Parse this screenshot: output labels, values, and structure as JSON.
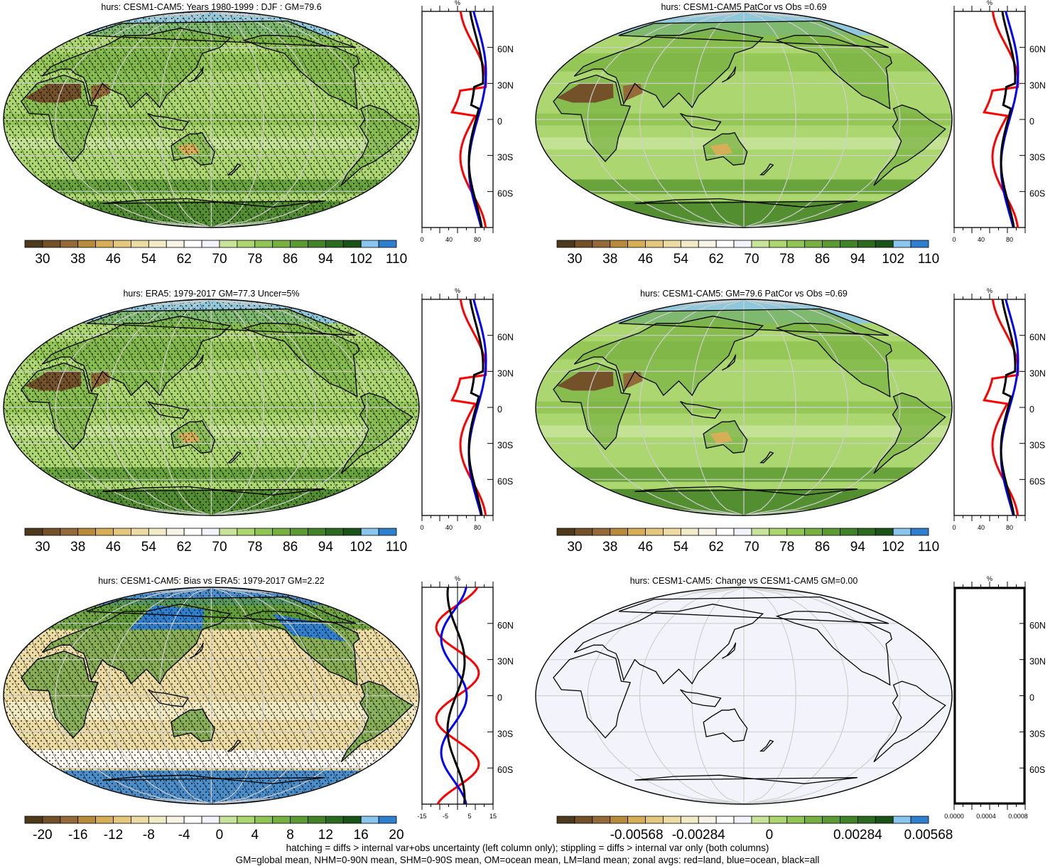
{
  "panels": [
    {
      "title": "hurs: CESM1-CAM5: Years 1980-1999 : DJF : GM=79.6",
      "colorbar_labels": [
        "30",
        "38",
        "46",
        "54",
        "62",
        "70",
        "78",
        "86",
        "94",
        "102",
        "110"
      ],
      "colorbar_colors": [
        "#4d3a1c",
        "#73522a",
        "#946a38",
        "#b88a3c",
        "#d6ae58",
        "#e3c77f",
        "#ecdca3",
        "#f2ebc8",
        "#f7f3e6",
        "#ffffff",
        "#f3f4fb",
        "#c7e49a",
        "#acd66f",
        "#90c453",
        "#77b041",
        "#5c9a33",
        "#438327",
        "#2c6a1f",
        "#1a5318",
        "#8ac5ee",
        "#2f7fcf"
      ],
      "zonal_axis": {
        "ticks": [
          "0",
          "40",
          "80"
        ],
        "unit": "%",
        "lat_labels": [
          "60N",
          "30N",
          "0",
          "30S",
          "60S"
        ]
      },
      "map_style": "model",
      "hatch": true,
      "stipple": true
    },
    {
      "title": "hurs: CESM1-CAM5 PatCor vs Obs =0.69",
      "colorbar_labels": [
        "30",
        "38",
        "46",
        "54",
        "62",
        "70",
        "78",
        "86",
        "94",
        "102",
        "110"
      ],
      "zonal_axis": {
        "ticks": [
          "0",
          "40",
          "80"
        ],
        "unit": "%",
        "lat_labels": [
          "60N",
          "30N",
          "0",
          "30S",
          "60S"
        ]
      },
      "map_style": "model",
      "hatch": false,
      "stipple": false
    },
    {
      "title": "hurs: ERA5: 1979-2017 GM=77.3 Uncer=5%",
      "colorbar_labels": [
        "30",
        "38",
        "46",
        "54",
        "62",
        "70",
        "78",
        "86",
        "94",
        "102",
        "110"
      ],
      "zonal_axis": {
        "ticks": [
          "0",
          "40",
          "80"
        ],
        "unit": "%",
        "lat_labels": [
          "60N",
          "30N",
          "0",
          "30S",
          "60S"
        ]
      },
      "map_style": "obs",
      "hatch": true,
      "stipple": true
    },
    {
      "title": "hurs: CESM1-CAM5: GM=79.6 PatCor vs Obs =0.69",
      "colorbar_labels": [
        "30",
        "38",
        "46",
        "54",
        "62",
        "70",
        "78",
        "86",
        "94",
        "102",
        "110"
      ],
      "zonal_axis": {
        "ticks": [
          "0",
          "40",
          "80"
        ],
        "unit": "%",
        "lat_labels": [
          "60N",
          "30N",
          "0",
          "30S",
          "60S"
        ]
      },
      "map_style": "model",
      "hatch": false,
      "stipple": false
    },
    {
      "title": "hurs: CESM1-CAM5: Bias vs ERA5: 1979-2017 GM=2.22",
      "colorbar_labels": [
        "-20",
        "-16",
        "-12",
        "-8",
        "-4",
        "0",
        "4",
        "8",
        "12",
        "16",
        "20"
      ],
      "zonal_axis": {
        "ticks": [
          "-15",
          "-5",
          "5",
          "15"
        ],
        "unit": "%",
        "lat_labels": [
          "60N",
          "30N",
          "0",
          "30S",
          "60S"
        ]
      },
      "map_style": "bias",
      "hatch": true,
      "stipple": true
    },
    {
      "title": "hurs: CESM1-CAM5: Change vs CESM1-CAM5 GM=0.00",
      "colorbar_labels": [
        "-0.00568",
        "-0.00284",
        "0",
        "0.00284",
        "0.00568"
      ],
      "zonal_axis": {
        "ticks": [
          "0.0000",
          "0.0004",
          "0.0008"
        ],
        "unit": "%",
        "lat_labels": [
          "60N",
          "30N",
          "0",
          "30S",
          "60S"
        ]
      },
      "map_style": "blank",
      "hatch": false,
      "stipple": false
    }
  ],
  "footer": {
    "line1": "hatching = diffs > internal var+obs uncertainty (left column only); stippling = diffs > internal var only (both columns)",
    "line2": "GM=global mean, NHM=0-90N mean, SHM=0-90S mean, OM=ocean mean, LM=land mean; zonal avgs: red=land, blue=ocean, black=all"
  },
  "colors": {
    "land_line": "#ff0000",
    "ocean_line": "#0000ff",
    "all_line": "#000000",
    "grid": "#cfcfcf",
    "sea_green": "#acd66f",
    "desert_brown": "#73522a",
    "polar_blue": "#2f7fcf"
  }
}
